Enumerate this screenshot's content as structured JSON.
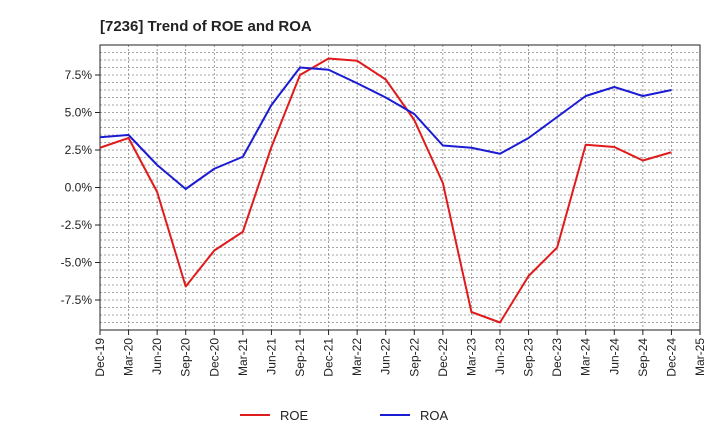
{
  "chart_data": {
    "type": "line",
    "title": "[7236]  Trend of ROE and ROA",
    "xlabel": "",
    "ylabel": "",
    "categories": [
      "Dec-19",
      "Mar-20",
      "Jun-20",
      "Sep-20",
      "Dec-20",
      "Mar-21",
      "Jun-21",
      "Sep-21",
      "Dec-21",
      "Mar-22",
      "Jun-22",
      "Sep-22",
      "Dec-22",
      "Mar-23",
      "Jun-23",
      "Sep-23",
      "Dec-23",
      "Mar-24",
      "Jun-24",
      "Sep-24",
      "Dec-24",
      "Mar-25"
    ],
    "ylim": [
      -9.5,
      9.5
    ],
    "yticks": [
      7.5,
      5.0,
      2.5,
      0.0,
      -2.5,
      -5.0,
      -7.5
    ],
    "ytick_labels": [
      "7.5%",
      "5.0%",
      "2.5%",
      "0.0%",
      "-2.5%",
      "-5.0%",
      "-7.5%"
    ],
    "grid": true,
    "legend_position": "bottom",
    "series": [
      {
        "name": "ROE",
        "color": "#e01b1b",
        "values": [
          2.65,
          3.3,
          -0.3,
          -6.6,
          -4.2,
          -2.95,
          2.7,
          7.5,
          8.6,
          8.45,
          7.2,
          4.5,
          0.3,
          -8.3,
          -9.0,
          -5.9,
          -4.0,
          2.85,
          2.7,
          1.8,
          2.35,
          null
        ]
      },
      {
        "name": "ROA",
        "color": "#1b1bd4",
        "values": [
          3.35,
          3.5,
          1.5,
          -0.1,
          1.25,
          2.05,
          5.5,
          8.0,
          7.85,
          6.95,
          6.0,
          4.9,
          2.8,
          2.65,
          2.25,
          3.3,
          4.7,
          6.1,
          6.7,
          6.1,
          6.5,
          null
        ]
      }
    ]
  }
}
